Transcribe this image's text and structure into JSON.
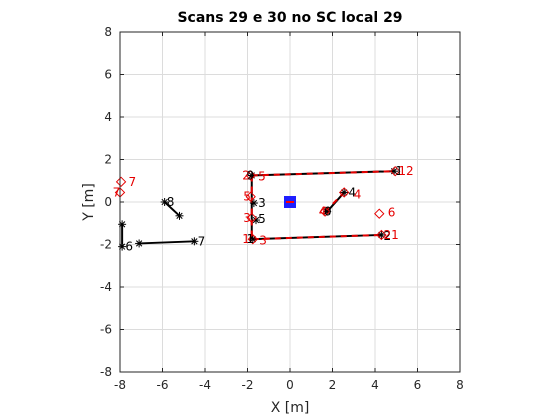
{
  "chart_data": {
    "type": "scatter",
    "title": "Scans 29 e 30 no SC local 29",
    "xlabel": "X [m]",
    "ylabel": "Y [m]",
    "xlim": [
      -8,
      8
    ],
    "ylim": [
      -8,
      8
    ],
    "xticks": [
      -8,
      -6,
      -4,
      -2,
      0,
      2,
      4,
      6,
      8
    ],
    "yticks": [
      -8,
      -6,
      -4,
      -2,
      0,
      2,
      4,
      6,
      8
    ],
    "grid": true,
    "colors": {
      "scan_a": "#000000",
      "scan_b": "#e60000",
      "origin_fill": "#1f1fff",
      "origin_mark": "#ff0000",
      "grid": "#dcdcdc"
    },
    "origin_marker": {
      "x": 0,
      "y": 0
    },
    "series": [
      {
        "color": "#000000",
        "marker": "asterisk",
        "points": [
          {
            "label": "1",
            "x": 4.9,
            "y": 1.45
          },
          {
            "label": "2",
            "x": 4.3,
            "y": -1.55
          },
          {
            "label": "3",
            "x": -1.7,
            "y": -0.05
          },
          {
            "label": "4",
            "x": 2.55,
            "y": 0.45
          },
          {
            "label": "5",
            "x": -1.6,
            "y": -0.85
          },
          {
            "label": "6",
            "x": -7.9,
            "y": -2.1
          },
          {
            "label": "7",
            "x": -4.5,
            "y": -1.85
          },
          {
            "label": "8",
            "x": -5.9,
            "y": 0.0
          },
          {
            "label": "9",
            "x": -1.8,
            "y": 1.25
          },
          {
            "label": "10",
            "x": 1.75,
            "y": -0.45
          },
          {
            "label": "11",
            "x": -1.75,
            "y": -1.75
          }
        ],
        "segments": [
          [
            [
              -1.8,
              1.25
            ],
            [
              4.9,
              1.45
            ]
          ],
          [
            [
              -1.75,
              -1.75
            ],
            [
              4.3,
              -1.55
            ]
          ],
          [
            [
              -1.8,
              1.25
            ],
            [
              -1.8,
              -1.75
            ]
          ],
          [
            [
              1.75,
              -0.45
            ],
            [
              2.55,
              0.45
            ]
          ],
          [
            [
              -7.9,
              -2.1
            ],
            [
              -7.9,
              -1.05
            ]
          ],
          [
            [
              -7.1,
              -1.95
            ],
            [
              -4.5,
              -1.85
            ]
          ],
          [
            [
              -5.9,
              0.0
            ],
            [
              -5.2,
              -0.65
            ]
          ]
        ],
        "extra_points": [
          [
            -7.9,
            -1.05
          ],
          [
            -7.1,
            -1.95
          ],
          [
            -5.2,
            -0.65
          ]
        ]
      },
      {
        "color": "#e60000",
        "marker": "diamond",
        "points": [
          {
            "label": "12",
            "x": 4.95,
            "y": 1.45
          },
          {
            "label": "21",
            "x": 4.3,
            "y": -1.55
          },
          {
            "label": "3",
            "x": -1.8,
            "y": -0.75
          },
          {
            "label": "4",
            "x": 2.55,
            "y": 0.45
          },
          {
            "label": "4",
            "x": 1.65,
            "y": -0.45
          },
          {
            "label": "5",
            "x": -1.85,
            "y": 0.25
          },
          {
            "label": "6",
            "x": 4.2,
            "y": -0.55
          },
          {
            "label": "7",
            "x": -7.95,
            "y": 0.95
          },
          {
            "label": "7",
            "x": -8.0,
            "y": 0.45
          },
          {
            "label": "2",
            "x": -1.85,
            "y": 1.25
          },
          {
            "label": "1",
            "x": -1.75,
            "y": -1.75
          }
        ],
        "segments": [
          [
            [
              -1.8,
              1.25
            ],
            [
              4.95,
              1.45
            ]
          ],
          [
            [
              -1.75,
              -1.75
            ],
            [
              4.3,
              -1.55
            ]
          ],
          [
            [
              -1.8,
              1.25
            ],
            [
              -1.8,
              -1.75
            ]
          ],
          [
            [
              1.65,
              -0.45
            ],
            [
              2.55,
              0.45
            ]
          ]
        ]
      }
    ],
    "point_labels": [
      {
        "text": "1",
        "color": "#000000",
        "x": 4.95,
        "y": 1.45
      },
      {
        "text": "12",
        "color": "#e60000",
        "x": 5.1,
        "y": 1.45
      },
      {
        "text": "2",
        "color": "#000000",
        "x": 4.4,
        "y": -1.6
      },
      {
        "text": "21",
        "color": "#e60000",
        "x": 4.4,
        "y": -1.55
      },
      {
        "text": "4",
        "color": "#000000",
        "x": 2.75,
        "y": 0.45
      },
      {
        "text": "4",
        "color": "#e60000",
        "x": 3.0,
        "y": 0.35
      },
      {
        "text": "4",
        "color": "#e60000",
        "x": 1.35,
        "y": -0.45
      },
      {
        "text": "0",
        "color": "#000000",
        "x": 1.6,
        "y": -0.45
      },
      {
        "text": "6",
        "color": "#e60000",
        "x": 4.6,
        "y": -0.5
      },
      {
        "text": "3",
        "color": "#000000",
        "x": -1.5,
        "y": -0.05
      },
      {
        "text": "5",
        "color": "#e60000",
        "x": -2.2,
        "y": 0.25
      },
      {
        "text": "3",
        "color": "#e60000",
        "x": -2.2,
        "y": -0.75
      },
      {
        "text": "5",
        "color": "#000000",
        "x": -1.5,
        "y": -0.8
      },
      {
        "text": "2",
        "color": "#e60000",
        "x": -2.25,
        "y": 1.25
      },
      {
        "text": "9",
        "color": "#000000",
        "x": -2.05,
        "y": 1.25
      },
      {
        "text": "5",
        "color": "#e60000",
        "x": -1.5,
        "y": 1.2
      },
      {
        "text": "1",
        "color": "#e60000",
        "x": -2.25,
        "y": -1.75
      },
      {
        "text": "1",
        "color": "#000000",
        "x": -2.05,
        "y": -1.75
      },
      {
        "text": "3",
        "color": "#e60000",
        "x": -1.45,
        "y": -1.8
      },
      {
        "text": "7",
        "color": "#e60000",
        "x": -7.6,
        "y": 0.95
      },
      {
        "text": "7",
        "color": "#e60000",
        "x": -8.35,
        "y": 0.45
      },
      {
        "text": "8",
        "color": "#000000",
        "x": -5.8,
        "y": 0.0
      },
      {
        "text": "6",
        "color": "#000000",
        "x": -7.75,
        "y": -2.1
      },
      {
        "text": "7",
        "color": "#000000",
        "x": -4.35,
        "y": -1.85
      }
    ]
  }
}
